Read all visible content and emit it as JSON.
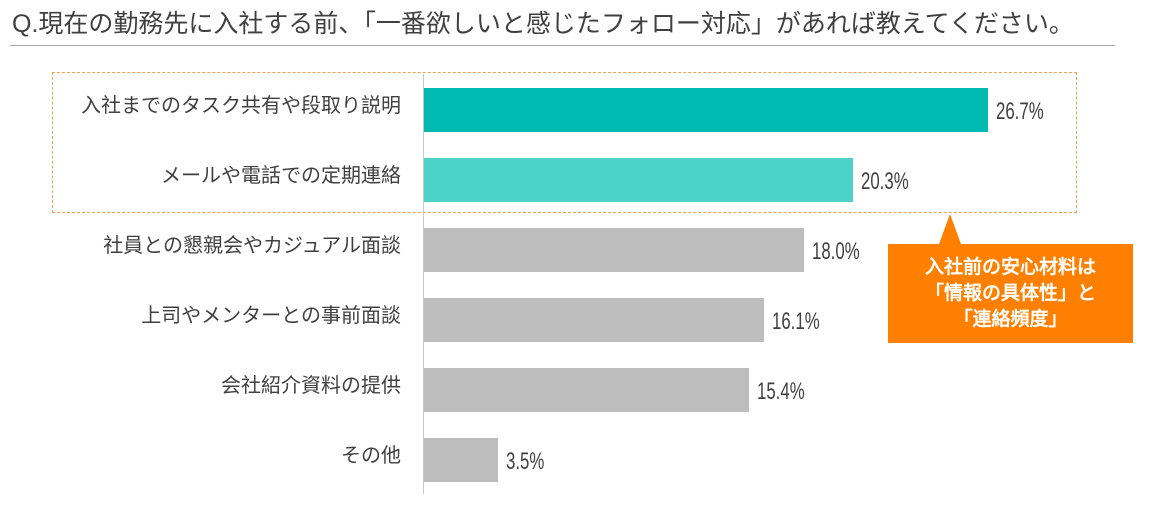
{
  "chart_data": {
    "type": "bar",
    "orientation": "horizontal",
    "title": "Q.現在の勤務先に入社する前、「一番欲しいと感じたフォロー対応」があれば教えてください。",
    "categories": [
      "入社までのタスク共有や段取り説明",
      "メールや電話での定期連絡",
      "社員との懇親会やカジュアル面談",
      "上司やメンターとの事前面談",
      "会社紹介資料の提供",
      "その他"
    ],
    "values": [
      26.7,
      20.3,
      18.0,
      16.1,
      15.4,
      3.5
    ],
    "value_labels": [
      "26.7%",
      "20.3%",
      "18.0%",
      "16.1%",
      "15.4%",
      "3.5%"
    ],
    "bar_colors": [
      "#00B9B0",
      "#4DD2CA",
      "#BDBDBD",
      "#BDBDBD",
      "#BDBDBD",
      "#BDBDBD"
    ],
    "grid": false,
    "legend": "none",
    "annotation": {
      "lines": [
        "入社前の安心材料は",
        "「情報の具体性」と",
        "「連絡頻度」"
      ],
      "color": "#FF8000",
      "text_color": "#FFFFFF"
    }
  },
  "colors": {
    "highlight_border": "#F0A050"
  }
}
